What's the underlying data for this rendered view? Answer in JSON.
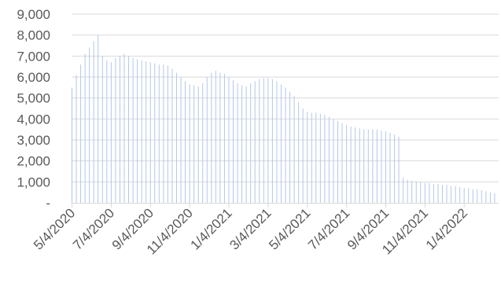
{
  "chart_data": {
    "type": "bar",
    "title": "",
    "xlabel": "",
    "ylabel": "",
    "ylim": [
      0,
      9000
    ],
    "grid": "horizontal",
    "legend": "none",
    "bar_color": "#b4c7e7",
    "grid_color": "#d9d9d9",
    "text_color": "#595959",
    "y_ticks": [
      {
        "value": 0,
        "label": "-"
      },
      {
        "value": 1000,
        "label": "1,000"
      },
      {
        "value": 2000,
        "label": "2,000"
      },
      {
        "value": 3000,
        "label": "3,000"
      },
      {
        "value": 4000,
        "label": "4,000"
      },
      {
        "value": 5000,
        "label": "5,000"
      },
      {
        "value": 6000,
        "label": "6,000"
      },
      {
        "value": 7000,
        "label": "7,000"
      },
      {
        "value": 8000,
        "label": "8,000"
      },
      {
        "value": 9000,
        "label": "9,000"
      }
    ],
    "x_ticks": [
      {
        "index": 0,
        "label": "5/4/2020"
      },
      {
        "index": 9,
        "label": "7/4/2020"
      },
      {
        "index": 18,
        "label": "9/4/2020"
      },
      {
        "index": 27,
        "label": "11/4/2020"
      },
      {
        "index": 36,
        "label": "1/4/2021"
      },
      {
        "index": 45,
        "label": "3/4/2021"
      },
      {
        "index": 54,
        "label": "5/4/2021"
      },
      {
        "index": 63,
        "label": "7/4/2021"
      },
      {
        "index": 72,
        "label": "9/4/2021"
      },
      {
        "index": 81,
        "label": "11/4/2021"
      },
      {
        "index": 90,
        "label": "1/4/2022"
      }
    ],
    "series": [
      {
        "values": [
          5500,
          6100,
          6600,
          7100,
          7400,
          7700,
          8000,
          7000,
          6800,
          6700,
          6900,
          7000,
          7100,
          7000,
          6900,
          6850,
          6800,
          6750,
          6700,
          6650,
          6600,
          6600,
          6550,
          6400,
          6200,
          6000,
          5800,
          5650,
          5600,
          5550,
          5700,
          6000,
          6200,
          6300,
          6200,
          6150,
          6000,
          5850,
          5700,
          5600,
          5550,
          5700,
          5800,
          5900,
          5950,
          5950,
          5900,
          5800,
          5650,
          5500,
          5300,
          5100,
          4800,
          4500,
          4350,
          4300,
          4300,
          4250,
          4200,
          4100,
          4000,
          3900,
          3800,
          3700,
          3650,
          3600,
          3550,
          3500,
          3500,
          3500,
          3500,
          3450,
          3400,
          3350,
          3250,
          3150,
          1200,
          1100,
          1050,
          1000,
          1000,
          950,
          950,
          900,
          900,
          850,
          850,
          800,
          800,
          750,
          700,
          700,
          650,
          650,
          600,
          550,
          500,
          450
        ]
      }
    ]
  }
}
